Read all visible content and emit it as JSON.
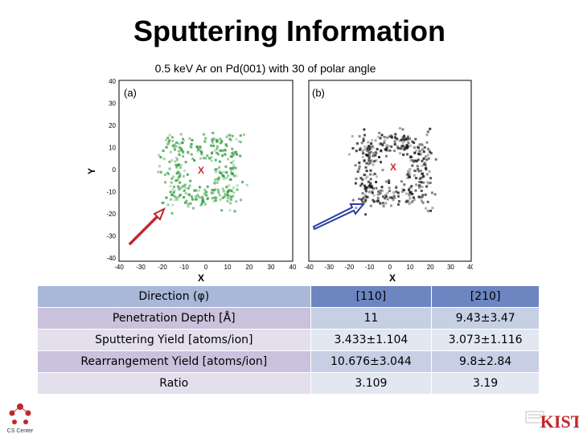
{
  "title": "Sputtering Information",
  "figure": {
    "caption": "0.5 keV Ar on Pd(001) with 30 of polar angle",
    "panel_a_label": "(a)",
    "panel_b_label": "(b)",
    "x_axis_label": "X",
    "y_axis_label": "Y",
    "x_ticks": [
      "-40",
      "-30",
      "-20",
      "-10",
      "0",
      "10",
      "20",
      "30",
      "40"
    ],
    "y_ticks": [
      "40",
      "30",
      "20",
      "10",
      "0",
      "-10",
      "-20",
      "-30",
      "-40"
    ],
    "center_marker": "X",
    "colors": {
      "panel_a": "#2e9a3a",
      "panel_b": "#111111",
      "arrow_a": "#c0282a",
      "arrow_b": "#2a3f9c",
      "marker": "#d42a2a"
    }
  },
  "table": {
    "header": {
      "label": "Direction (φ)",
      "v1": "[110]",
      "v2": "[210]"
    },
    "rows": [
      {
        "label": "Penetration Depth [Å]",
        "v1": "11",
        "v2": "9.43±3.47"
      },
      {
        "label": "Sputtering Yield [atoms/ion]",
        "v1": "3.433±1.104",
        "v2": "3.073±1.116"
      },
      {
        "label": "Rearrangement Yield [atoms/ion]",
        "v1": "10.676±3.044",
        "v2": "9.8±2.84"
      },
      {
        "label": "Ratio",
        "v1": "3.109",
        "v2": "3.19"
      }
    ]
  },
  "logos": {
    "left_text": "CS Center",
    "right_text": "KIST"
  }
}
